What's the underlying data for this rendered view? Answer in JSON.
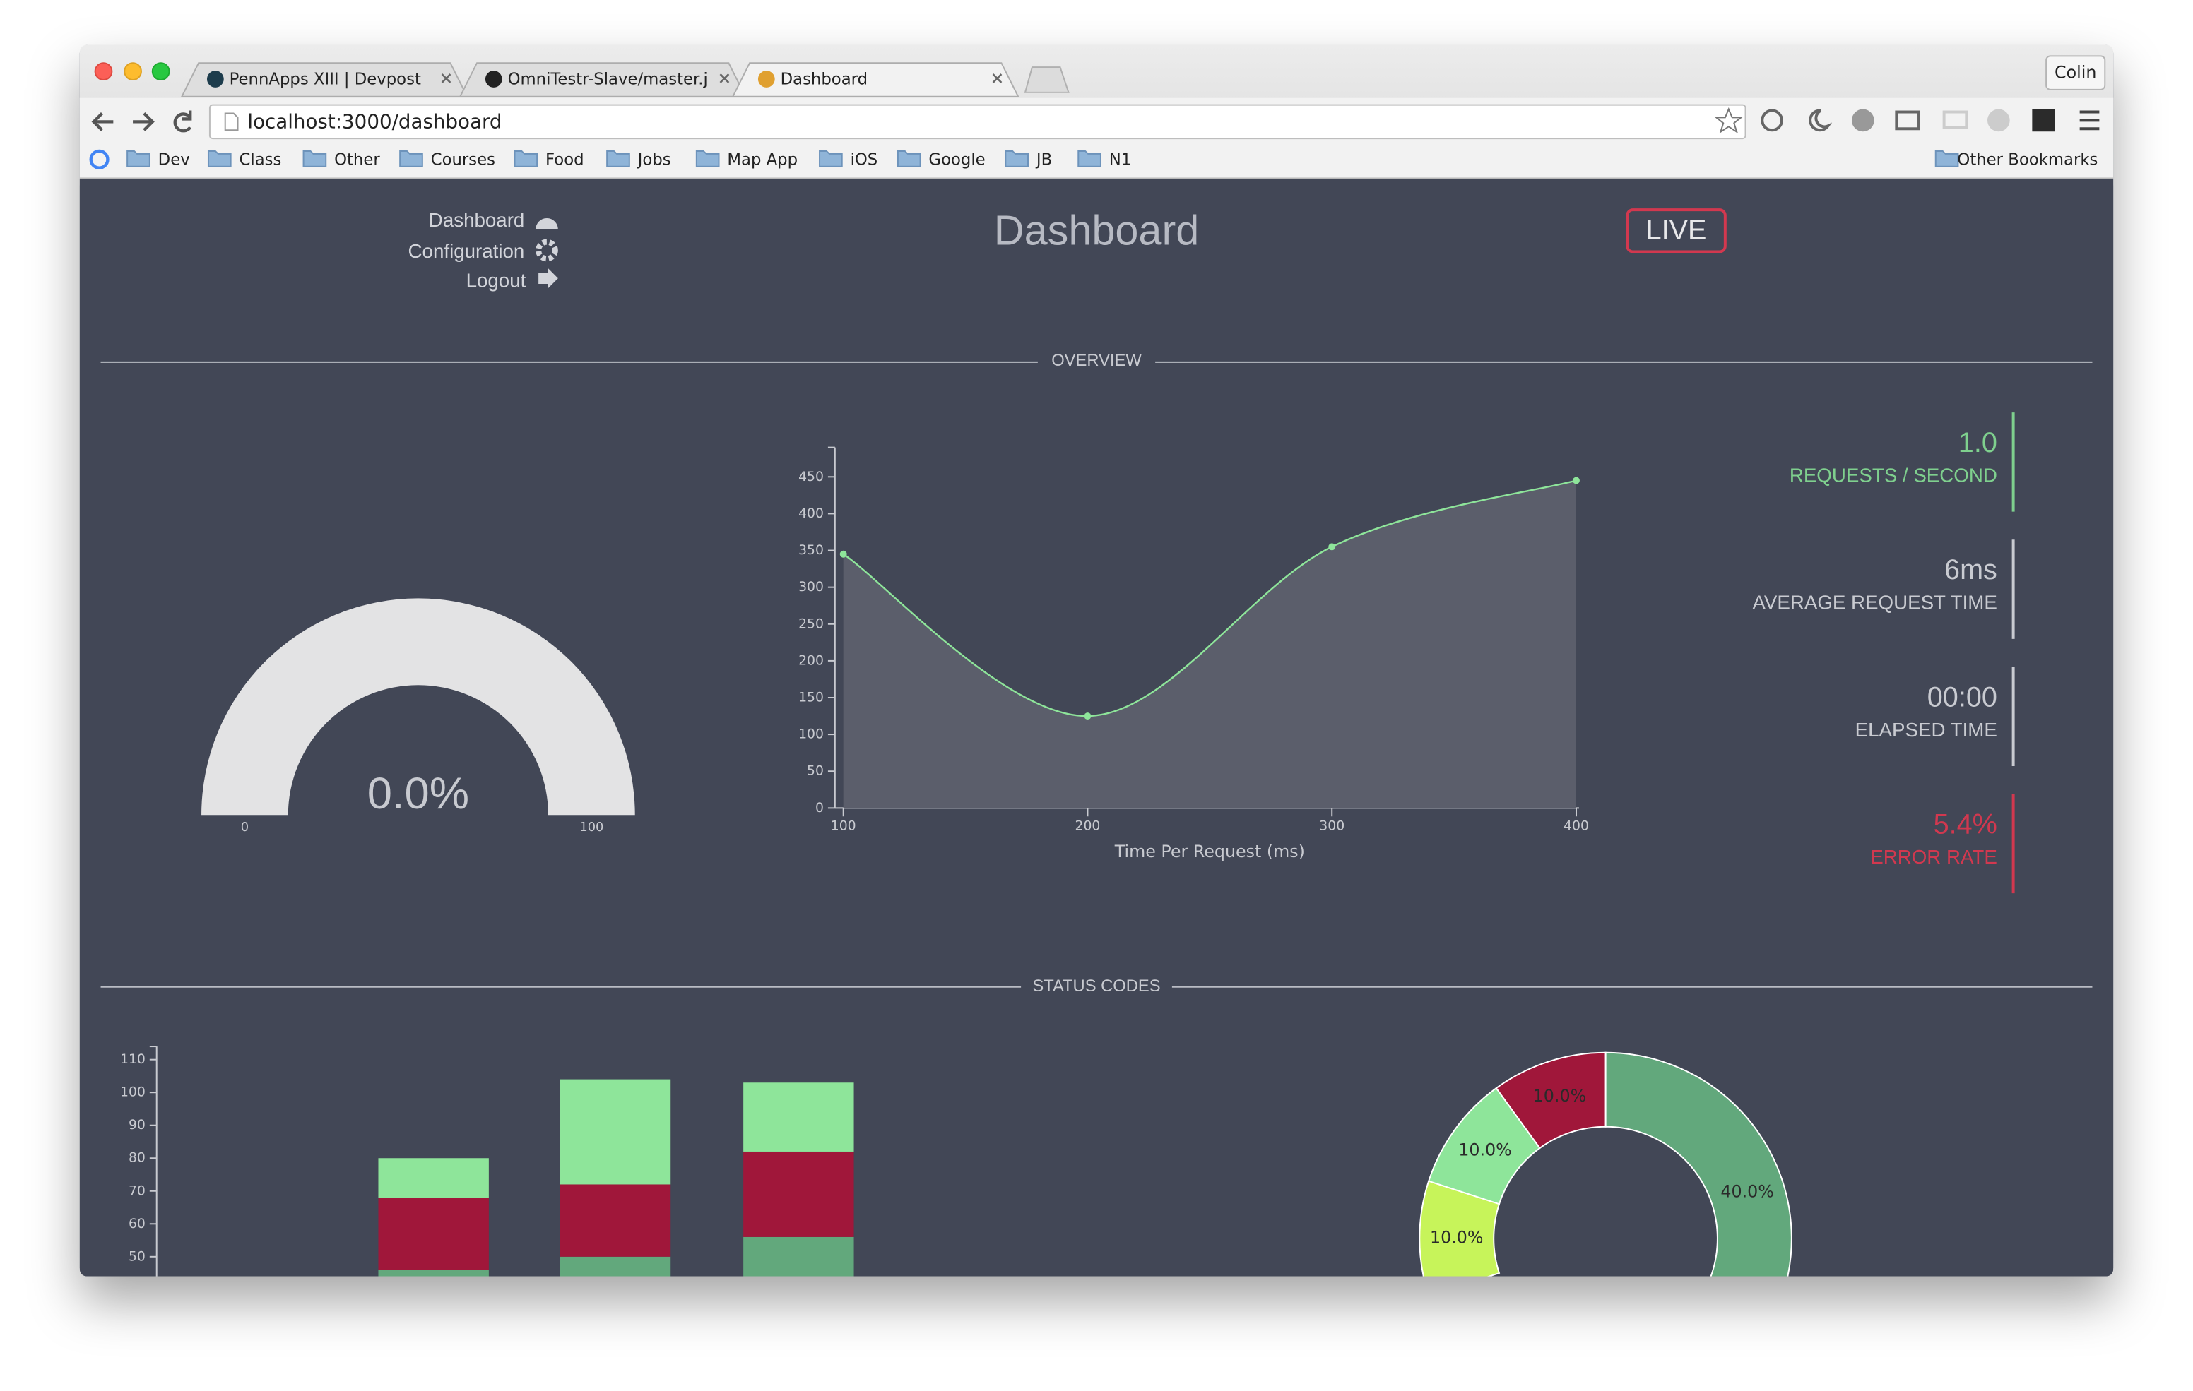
{
  "browser": {
    "tabs": [
      "PennApps XIII | Devpost",
      "OmniTestr-Slave/master.js",
      "Dashboard"
    ],
    "user": "Colin",
    "url": "localhost:3000/dashboard",
    "bookmarks": [
      "Dev",
      "Class",
      "Other",
      "Courses",
      "Food",
      "Jobs",
      "Map App",
      "iOS",
      "Google",
      "JB",
      "N1"
    ],
    "other_bookmarks": "Other Bookmarks"
  },
  "nav": [
    "Dashboard",
    "Configuration",
    "Logout"
  ],
  "header": {
    "title": "Dashboard",
    "status": "LIVE"
  },
  "sections": [
    "OVERVIEW",
    "STATUS CODES"
  ],
  "stats": [
    {
      "value": "1.0",
      "label": "REQUESTS / SECOND"
    },
    {
      "value": "6ms",
      "label": "AVERAGE REQUEST TIME"
    },
    {
      "value": "00:00",
      "label": "ELAPSED TIME"
    },
    {
      "value": "5.4%",
      "label": "ERROR RATE"
    }
  ],
  "chart_data": [
    {
      "type": "gauge",
      "value": 0,
      "value_label": "0.0%",
      "range": [
        0,
        100
      ],
      "color": "#8ee59a"
    },
    {
      "type": "line",
      "x": [
        100,
        200,
        300,
        400
      ],
      "values": [
        345,
        125,
        355,
        445
      ],
      "color": "#8ee59a",
      "area": true,
      "xlim": [
        100,
        400
      ],
      "xticks": [
        100,
        200,
        300,
        400
      ],
      "ylim": [
        0,
        490
      ],
      "yticks": [
        0,
        50,
        100,
        150,
        200,
        250,
        300,
        350,
        400,
        450
      ],
      "x_label": "Time Per Request (ms)"
    },
    {
      "type": "bar",
      "stacked": true,
      "categories": [
        null,
        null,
        null
      ],
      "series": [
        {
          "color": "#62a87c",
          "values": [
            46,
            50,
            56
          ]
        },
        {
          "color": "#a0173a",
          "values": [
            22,
            22,
            26
          ]
        },
        {
          "color": "#8ee59a",
          "values": [
            12,
            32,
            21
          ]
        }
      ],
      "ylim": [
        0,
        114
      ],
      "yticks": [
        50,
        60,
        70,
        80,
        90,
        100,
        110
      ]
    },
    {
      "type": "pie",
      "values": [
        40,
        10,
        10,
        10
      ],
      "value_labels": [
        "40.0%",
        "10.0%",
        "10.0%",
        "10.0%"
      ],
      "colors": [
        "#62a87c",
        "#c7f45a",
        "#8ee59a",
        "#a0173a"
      ]
    }
  ]
}
